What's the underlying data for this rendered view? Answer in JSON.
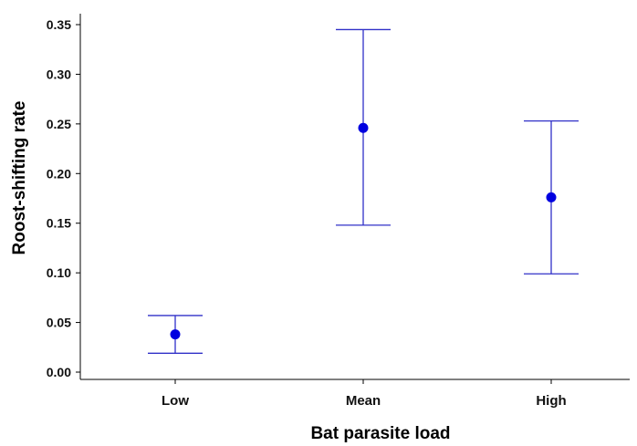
{
  "chart_data": {
    "type": "scatter",
    "title": "",
    "xlabel": "Bat parasite load",
    "ylabel": "Roost-shifting rate",
    "categories": [
      "Low",
      "Mean",
      "High"
    ],
    "series": [
      {
        "values": [
          0.038,
          0.246,
          0.176
        ],
        "lower": [
          0.019,
          0.148,
          0.099
        ],
        "upper": [
          0.057,
          0.345,
          0.253
        ]
      }
    ],
    "ylim": [
      0.0,
      0.35
    ],
    "yticks": [
      "0.00",
      "0.05",
      "0.10",
      "0.15",
      "0.20",
      "0.25",
      "0.30",
      "0.35"
    ],
    "grid": false,
    "colors": {
      "marker": "#0000e0",
      "error_bar": "#3030c8",
      "axis": "#000000"
    }
  }
}
